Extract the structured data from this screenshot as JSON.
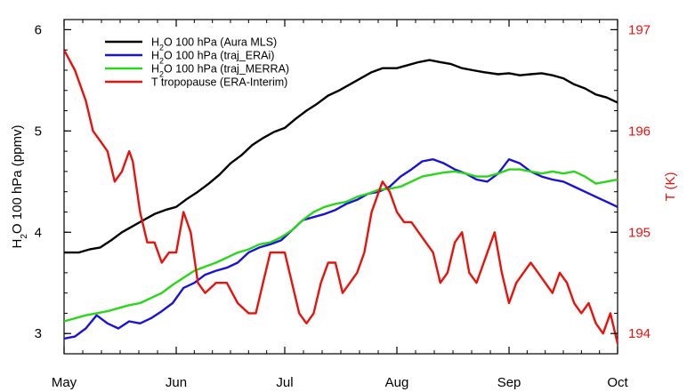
{
  "chart_data": {
    "type": "line",
    "x_tick_labels": [
      "May",
      "Jun",
      "Jul",
      "Aug",
      "Sep",
      "Oct"
    ],
    "x_domain_days": [
      0,
      153
    ],
    "x_tick_days": [
      0,
      31,
      61,
      92,
      123,
      153
    ],
    "y_left": {
      "label_main": "H",
      "label_sub": "2",
      "label_rest": "O 100 hPa (ppmv)",
      "ylim": [
        2.8,
        6.1
      ],
      "ticks": [
        3,
        4,
        5,
        6
      ],
      "tick_labels": [
        "3",
        "4",
        "5",
        "6"
      ]
    },
    "y_right": {
      "label": "T (K)",
      "ylim": [
        193.8,
        197.1
      ],
      "ticks": [
        194,
        195,
        196,
        197
      ],
      "tick_labels": [
        "194",
        "195",
        "196",
        "197"
      ],
      "color": "#e8120c"
    },
    "legend": {
      "placement": "top-left"
    },
    "series": [
      {
        "name_main": "H",
        "name_sub": "2",
        "name_rest": "O 100 hPa (Aura MLS)",
        "color": "#000000",
        "axis": "left",
        "points": [
          [
            0,
            3.8
          ],
          [
            4,
            3.8
          ],
          [
            7,
            3.83
          ],
          [
            10,
            3.85
          ],
          [
            13,
            3.92
          ],
          [
            16,
            4.0
          ],
          [
            19,
            4.06
          ],
          [
            22,
            4.12
          ],
          [
            25,
            4.18
          ],
          [
            28,
            4.22
          ],
          [
            31,
            4.25
          ],
          [
            34,
            4.33
          ],
          [
            37,
            4.4
          ],
          [
            40,
            4.48
          ],
          [
            43,
            4.57
          ],
          [
            46,
            4.68
          ],
          [
            49,
            4.76
          ],
          [
            52,
            4.86
          ],
          [
            55,
            4.93
          ],
          [
            58,
            4.99
          ],
          [
            61,
            5.03
          ],
          [
            64,
            5.12
          ],
          [
            67,
            5.2
          ],
          [
            70,
            5.27
          ],
          [
            73,
            5.35
          ],
          [
            76,
            5.4
          ],
          [
            79,
            5.46
          ],
          [
            82,
            5.52
          ],
          [
            85,
            5.58
          ],
          [
            88,
            5.62
          ],
          [
            92,
            5.62
          ],
          [
            95,
            5.65
          ],
          [
            98,
            5.68
          ],
          [
            101,
            5.7
          ],
          [
            104,
            5.68
          ],
          [
            107,
            5.66
          ],
          [
            110,
            5.62
          ],
          [
            113,
            5.6
          ],
          [
            116,
            5.58
          ],
          [
            120,
            5.56
          ],
          [
            123,
            5.57
          ],
          [
            126,
            5.55
          ],
          [
            129,
            5.56
          ],
          [
            132,
            5.57
          ],
          [
            135,
            5.55
          ],
          [
            138,
            5.52
          ],
          [
            141,
            5.46
          ],
          [
            144,
            5.42
          ],
          [
            147,
            5.36
          ],
          [
            150,
            5.33
          ],
          [
            153,
            5.28
          ]
        ]
      },
      {
        "name_main": "H",
        "name_sub": "2",
        "name_rest": "O 100 hPa (traj_ERAi)",
        "color": "#1a12d4",
        "axis": "left",
        "points": [
          [
            0,
            2.95
          ],
          [
            3,
            2.97
          ],
          [
            6,
            3.05
          ],
          [
            9,
            3.18
          ],
          [
            12,
            3.1
          ],
          [
            15,
            3.05
          ],
          [
            18,
            3.12
          ],
          [
            21,
            3.1
          ],
          [
            24,
            3.15
          ],
          [
            27,
            3.22
          ],
          [
            30,
            3.3
          ],
          [
            33,
            3.45
          ],
          [
            36,
            3.5
          ],
          [
            39,
            3.58
          ],
          [
            42,
            3.62
          ],
          [
            45,
            3.65
          ],
          [
            48,
            3.7
          ],
          [
            51,
            3.8
          ],
          [
            54,
            3.85
          ],
          [
            57,
            3.88
          ],
          [
            60,
            3.92
          ],
          [
            63,
            4.02
          ],
          [
            66,
            4.12
          ],
          [
            69,
            4.15
          ],
          [
            72,
            4.18
          ],
          [
            75,
            4.22
          ],
          [
            78,
            4.28
          ],
          [
            81,
            4.32
          ],
          [
            84,
            4.38
          ],
          [
            87,
            4.4
          ],
          [
            90,
            4.45
          ],
          [
            93,
            4.55
          ],
          [
            96,
            4.62
          ],
          [
            99,
            4.7
          ],
          [
            102,
            4.72
          ],
          [
            105,
            4.68
          ],
          [
            108,
            4.62
          ],
          [
            111,
            4.58
          ],
          [
            114,
            4.52
          ],
          [
            117,
            4.5
          ],
          [
            120,
            4.58
          ],
          [
            123,
            4.72
          ],
          [
            126,
            4.68
          ],
          [
            129,
            4.6
          ],
          [
            132,
            4.55
          ],
          [
            135,
            4.52
          ],
          [
            138,
            4.5
          ],
          [
            141,
            4.45
          ],
          [
            144,
            4.4
          ],
          [
            147,
            4.35
          ],
          [
            150,
            4.3
          ],
          [
            153,
            4.25
          ]
        ]
      },
      {
        "name_main": "H",
        "name_sub": "2",
        "name_rest": "O 100 hPa (traj_MERRA)",
        "color": "#2ad61a",
        "axis": "left",
        "points": [
          [
            0,
            3.12
          ],
          [
            3,
            3.15
          ],
          [
            6,
            3.18
          ],
          [
            9,
            3.2
          ],
          [
            12,
            3.22
          ],
          [
            15,
            3.25
          ],
          [
            18,
            3.28
          ],
          [
            21,
            3.3
          ],
          [
            24,
            3.35
          ],
          [
            27,
            3.4
          ],
          [
            30,
            3.48
          ],
          [
            33,
            3.55
          ],
          [
            36,
            3.62
          ],
          [
            39,
            3.66
          ],
          [
            42,
            3.7
          ],
          [
            45,
            3.75
          ],
          [
            48,
            3.8
          ],
          [
            51,
            3.83
          ],
          [
            54,
            3.88
          ],
          [
            57,
            3.9
          ],
          [
            60,
            3.95
          ],
          [
            63,
            4.02
          ],
          [
            66,
            4.12
          ],
          [
            69,
            4.2
          ],
          [
            72,
            4.25
          ],
          [
            75,
            4.28
          ],
          [
            78,
            4.3
          ],
          [
            81,
            4.35
          ],
          [
            84,
            4.38
          ],
          [
            87,
            4.42
          ],
          [
            90,
            4.43
          ],
          [
            93,
            4.45
          ],
          [
            96,
            4.5
          ],
          [
            99,
            4.55
          ],
          [
            102,
            4.57
          ],
          [
            105,
            4.59
          ],
          [
            108,
            4.6
          ],
          [
            111,
            4.58
          ],
          [
            114,
            4.55
          ],
          [
            117,
            4.55
          ],
          [
            120,
            4.58
          ],
          [
            123,
            4.62
          ],
          [
            126,
            4.62
          ],
          [
            129,
            4.6
          ],
          [
            132,
            4.58
          ],
          [
            135,
            4.6
          ],
          [
            138,
            4.58
          ],
          [
            141,
            4.6
          ],
          [
            144,
            4.55
          ],
          [
            147,
            4.48
          ],
          [
            150,
            4.5
          ],
          [
            153,
            4.52
          ]
        ]
      },
      {
        "name_main": "T tropopause (ERA-Interim)",
        "name_sub": "",
        "name_rest": "",
        "color": "#e8120c",
        "axis": "right",
        "points": [
          [
            0,
            196.8
          ],
          [
            3,
            196.6
          ],
          [
            6,
            196.3
          ],
          [
            8,
            196.0
          ],
          [
            10,
            195.9
          ],
          [
            12,
            195.8
          ],
          [
            14,
            195.5
          ],
          [
            16,
            195.6
          ],
          [
            18,
            195.8
          ],
          [
            19,
            195.7
          ],
          [
            21,
            195.2
          ],
          [
            23,
            194.9
          ],
          [
            25,
            194.9
          ],
          [
            27,
            194.7
          ],
          [
            29,
            194.8
          ],
          [
            31,
            194.8
          ],
          [
            33,
            195.2
          ],
          [
            35,
            195.0
          ],
          [
            37,
            194.5
          ],
          [
            39,
            194.4
          ],
          [
            42,
            194.5
          ],
          [
            45,
            194.5
          ],
          [
            48,
            194.3
          ],
          [
            51,
            194.2
          ],
          [
            53,
            194.2
          ],
          [
            55,
            194.5
          ],
          [
            57,
            194.8
          ],
          [
            59,
            194.8
          ],
          [
            61,
            194.8
          ],
          [
            63,
            194.5
          ],
          [
            65,
            194.2
          ],
          [
            67,
            194.1
          ],
          [
            69,
            194.2
          ],
          [
            71,
            194.5
          ],
          [
            73,
            194.7
          ],
          [
            75,
            194.7
          ],
          [
            77,
            194.4
          ],
          [
            79,
            194.5
          ],
          [
            81,
            194.6
          ],
          [
            83,
            194.8
          ],
          [
            85,
            195.2
          ],
          [
            87,
            195.4
          ],
          [
            88,
            195.5
          ],
          [
            90,
            195.4
          ],
          [
            92,
            195.2
          ],
          [
            94,
            195.1
          ],
          [
            96,
            195.1
          ],
          [
            98,
            195.0
          ],
          [
            100,
            194.9
          ],
          [
            102,
            194.8
          ],
          [
            104,
            194.5
          ],
          [
            106,
            194.6
          ],
          [
            108,
            194.9
          ],
          [
            110,
            195.0
          ],
          [
            112,
            194.6
          ],
          [
            114,
            194.5
          ],
          [
            116,
            194.7
          ],
          [
            118,
            194.9
          ],
          [
            119,
            195.0
          ],
          [
            121,
            194.6
          ],
          [
            123,
            194.3
          ],
          [
            125,
            194.5
          ],
          [
            127,
            194.6
          ],
          [
            129,
            194.7
          ],
          [
            131,
            194.6
          ],
          [
            133,
            194.5
          ],
          [
            135,
            194.4
          ],
          [
            137,
            194.6
          ],
          [
            139,
            194.5
          ],
          [
            141,
            194.3
          ],
          [
            143,
            194.2
          ],
          [
            145,
            194.3
          ],
          [
            147,
            194.1
          ],
          [
            149,
            194.0
          ],
          [
            151,
            194.2
          ],
          [
            153,
            193.9
          ]
        ]
      }
    ]
  }
}
